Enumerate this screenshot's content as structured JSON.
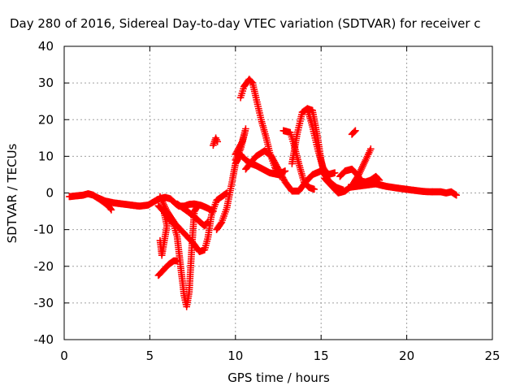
{
  "chart_data": {
    "type": "scatter",
    "title": "Day 280 of 2016, Sidereal Day-to-day VTEC variation (SDTVAR) for receiver c",
    "xlabel": "GPS time / hours",
    "ylabel": "SDTVAR / TECUs",
    "xlim": [
      0,
      25
    ],
    "ylim": [
      -40,
      40
    ],
    "x_ticks": [
      "0",
      "5",
      "10",
      "15",
      "20",
      "25"
    ],
    "y_ticks": [
      "40",
      "30",
      "20",
      "10",
      "0",
      "-10",
      "-20",
      "-30",
      "-40"
    ],
    "grid": true,
    "marker": "plus",
    "color": "#ff0000",
    "series": [
      {
        "values": [
          [
            0.3,
            -1.0
          ],
          [
            0.7,
            -0.8
          ],
          [
            1.1,
            -0.6
          ],
          [
            1.4,
            -0.2
          ],
          [
            1.7,
            -0.6
          ],
          [
            2.0,
            -1.5
          ],
          [
            2.3,
            -2.5
          ],
          [
            2.6,
            -3.6
          ],
          [
            2.75,
            -4.6
          ]
        ]
      },
      {
        "values": [
          [
            1.9,
            -1.2
          ],
          [
            2.4,
            -2.2
          ],
          [
            2.9,
            -2.7
          ],
          [
            3.4,
            -3.0
          ],
          [
            3.9,
            -3.3
          ],
          [
            4.4,
            -3.6
          ],
          [
            4.9,
            -3.3
          ],
          [
            5.3,
            -2.2
          ],
          [
            5.6,
            -1.5
          ],
          [
            5.9,
            -1.2
          ],
          [
            6.2,
            -1.6
          ],
          [
            6.5,
            -2.9
          ],
          [
            6.7,
            -3.6
          ],
          [
            7.0,
            -3.6
          ],
          [
            7.3,
            -3.1
          ],
          [
            7.6,
            -3.0
          ],
          [
            8.0,
            -3.4
          ],
          [
            8.4,
            -4.2
          ],
          [
            8.7,
            -5.0
          ]
        ]
      },
      {
        "values": [
          [
            5.5,
            -3.5
          ],
          [
            5.8,
            -5.0
          ],
          [
            6.1,
            -7.0
          ],
          [
            6.4,
            -8.5
          ],
          [
            6.6,
            -12.0
          ],
          [
            6.8,
            -20.0
          ],
          [
            7.0,
            -28.0
          ],
          [
            7.15,
            -31.0
          ],
          [
            7.3,
            -27.0
          ],
          [
            7.45,
            -15.0
          ],
          [
            7.6,
            -5.0
          ],
          [
            7.8,
            -3.5
          ]
        ]
      },
      {
        "values": [
          [
            5.5,
            -22.5
          ],
          [
            5.8,
            -21.0
          ],
          [
            6.1,
            -19.5
          ],
          [
            6.4,
            -18.5
          ],
          [
            6.6,
            -18.5
          ]
        ]
      },
      {
        "values": [
          [
            5.6,
            -1.0
          ],
          [
            6.0,
            -5.0
          ],
          [
            6.5,
            -8.5
          ],
          [
            7.0,
            -11.0
          ],
          [
            7.5,
            -13.5
          ],
          [
            7.9,
            -16.0
          ],
          [
            8.2,
            -15.5
          ],
          [
            8.4,
            -12.0
          ],
          [
            8.6,
            -6.0
          ],
          [
            8.9,
            -2.0
          ],
          [
            9.2,
            -1.0
          ],
          [
            9.5,
            0.0
          ]
        ]
      },
      {
        "values": [
          [
            6.6,
            -3.0
          ],
          [
            7.2,
            -5.0
          ],
          [
            7.6,
            -6.5
          ],
          [
            8.0,
            -8.2
          ],
          [
            8.2,
            -9.0
          ],
          [
            8.4,
            -7.8
          ]
        ]
      },
      {
        "values": [
          [
            5.8,
            -4.5
          ],
          [
            6.0,
            -9.0
          ],
          [
            5.7,
            -17.0
          ],
          [
            5.6,
            -13.0
          ]
        ]
      },
      {
        "values": [
          [
            8.9,
            -10.0
          ],
          [
            9.2,
            -8.0
          ],
          [
            9.5,
            -4.0
          ],
          [
            9.8,
            3.0
          ],
          [
            10.0,
            8.0
          ],
          [
            10.3,
            10.5
          ],
          [
            10.6,
            9.0
          ],
          [
            10.9,
            8.0
          ],
          [
            11.2,
            7.5
          ],
          [
            11.6,
            6.5
          ],
          [
            12.0,
            5.5
          ],
          [
            12.5,
            5.0
          ],
          [
            12.9,
            6.0
          ]
        ]
      },
      {
        "values": [
          [
            10.3,
            26.0
          ],
          [
            10.5,
            29.0
          ],
          [
            10.8,
            31.0
          ],
          [
            11.0,
            30.0
          ],
          [
            11.2,
            26.0
          ],
          [
            11.5,
            20.0
          ],
          [
            11.8,
            15.0
          ],
          [
            12.0,
            11.0
          ],
          [
            12.3,
            7.0
          ],
          [
            12.6,
            4.5
          ]
        ]
      },
      {
        "values": [
          [
            10.0,
            10.5
          ],
          [
            10.4,
            14.0
          ],
          [
            10.6,
            17.5
          ],
          [
            10.3,
            12.0
          ],
          [
            10.0,
            9.0
          ]
        ]
      },
      {
        "values": [
          [
            8.7,
            13.0
          ],
          [
            8.85,
            15.0
          ],
          [
            8.95,
            14.0
          ]
        ]
      },
      {
        "values": [
          [
            10.6,
            6.5
          ],
          [
            11.2,
            10.0
          ],
          [
            11.7,
            11.5
          ],
          [
            12.1,
            10.0
          ],
          [
            12.5,
            6.5
          ],
          [
            12.9,
            3.0
          ],
          [
            13.3,
            0.5
          ],
          [
            13.7,
            0.5
          ],
          [
            14.1,
            3.0
          ],
          [
            14.5,
            5.0
          ],
          [
            15.0,
            6.0
          ],
          [
            15.5,
            5.0
          ]
        ]
      },
      {
        "values": [
          [
            12.8,
            17.0
          ],
          [
            13.2,
            16.5
          ],
          [
            13.4,
            13.5
          ],
          [
            13.7,
            8.0
          ],
          [
            14.0,
            3.0
          ],
          [
            14.3,
            1.5
          ],
          [
            14.6,
            1.0
          ]
        ]
      },
      {
        "values": [
          [
            13.3,
            8.0
          ],
          [
            13.6,
            16.0
          ],
          [
            13.9,
            22.0
          ],
          [
            14.2,
            23.0
          ],
          [
            14.5,
            22.5
          ],
          [
            14.8,
            15.0
          ],
          [
            15.0,
            9.0
          ],
          [
            15.2,
            5.0
          ],
          [
            15.5,
            3.0
          ],
          [
            15.9,
            1.5
          ],
          [
            16.3,
            0.8
          ]
        ]
      },
      {
        "values": [
          [
            14.2,
            23.0
          ],
          [
            14.5,
            18.0
          ],
          [
            14.8,
            12.0
          ],
          [
            15.1,
            7.0
          ],
          [
            15.4,
            5.0
          ],
          [
            15.8,
            5.5
          ]
        ]
      },
      {
        "values": [
          [
            15.2,
            4.0
          ],
          [
            15.6,
            2.0
          ],
          [
            16.0,
            0.0
          ],
          [
            16.4,
            0.5
          ],
          [
            16.8,
            2.0
          ],
          [
            17.2,
            5.0
          ],
          [
            17.6,
            9.0
          ],
          [
            17.9,
            12.0
          ]
        ]
      },
      {
        "values": [
          [
            16.1,
            4.5
          ],
          [
            16.4,
            6.0
          ],
          [
            16.8,
            6.5
          ],
          [
            17.1,
            5.0
          ],
          [
            17.4,
            3.0
          ],
          [
            17.6,
            3.0
          ],
          [
            17.9,
            3.5
          ],
          [
            18.2,
            4.5
          ],
          [
            18.4,
            3.5
          ]
        ]
      },
      {
        "values": [
          [
            16.8,
            16.0
          ],
          [
            17.0,
            17.0
          ]
        ]
      },
      {
        "values": [
          [
            16.6,
            1.5
          ],
          [
            17.4,
            2.0
          ],
          [
            18.2,
            2.5
          ],
          [
            18.8,
            1.8
          ],
          [
            19.5,
            1.3
          ],
          [
            20.3,
            0.8
          ],
          [
            21.0,
            0.4
          ],
          [
            21.5,
            0.3
          ]
        ]
      },
      {
        "values": [
          [
            17.0,
            3.5
          ],
          [
            17.6,
            3.0
          ],
          [
            18.2,
            2.5
          ],
          [
            18.6,
            2.0
          ]
        ]
      },
      {
        "values": [
          [
            21.5,
            0.3
          ],
          [
            22.0,
            0.3
          ],
          [
            22.3,
            0.0
          ],
          [
            22.6,
            0.3
          ],
          [
            22.9,
            -0.6
          ]
        ]
      }
    ]
  }
}
